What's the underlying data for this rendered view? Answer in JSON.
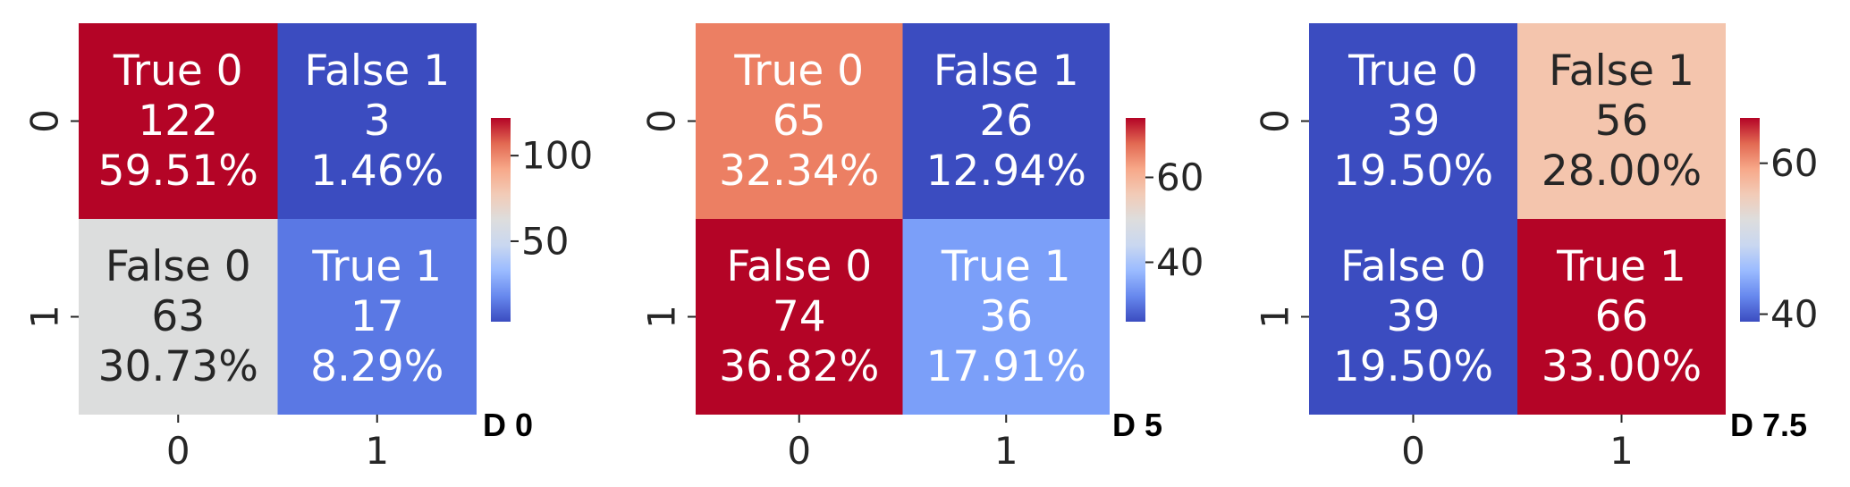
{
  "chart_data": [
    {
      "type": "heatmap",
      "title": "",
      "tag": "D 0",
      "x_ticks": [
        "0",
        "1"
      ],
      "y_ticks": [
        "0",
        "1"
      ],
      "cells": [
        [
          {
            "label": "True 0",
            "value": 122,
            "pct": "59.51%",
            "color": "#b40426",
            "text_color": "#ffffff"
          },
          {
            "label": "False 1",
            "value": 3,
            "pct": "1.46%",
            "color": "#3b4cc0",
            "text_color": "#ffffff"
          }
        ],
        [
          {
            "label": "False 0",
            "value": 63,
            "pct": "30.73%",
            "color": "#dcdddd",
            "text_color": "#262626"
          },
          {
            "label": "True 1",
            "value": 17,
            "pct": "8.29%",
            "color": "#5a78e4",
            "text_color": "#ffffff"
          }
        ]
      ],
      "vmin": 3,
      "vmax": 122,
      "colorbar_ticks": [
        {
          "value": 50,
          "label": "50"
        },
        {
          "value": 100,
          "label": "100"
        }
      ]
    },
    {
      "type": "heatmap",
      "title": "",
      "tag": "D 5",
      "x_ticks": [
        "0",
        "1"
      ],
      "y_ticks": [
        "0",
        "1"
      ],
      "cells": [
        [
          {
            "label": "True 0",
            "value": 65,
            "pct": "32.34%",
            "color": "#ec7f63",
            "text_color": "#ffffff"
          },
          {
            "label": "False 1",
            "value": 26,
            "pct": "12.94%",
            "color": "#3b4cc0",
            "text_color": "#ffffff"
          }
        ],
        [
          {
            "label": "False 0",
            "value": 74,
            "pct": "36.82%",
            "color": "#b40426",
            "text_color": "#ffffff"
          },
          {
            "label": "True 1",
            "value": 36,
            "pct": "17.91%",
            "color": "#7b9ff9",
            "text_color": "#ffffff"
          }
        ]
      ],
      "vmin": 26,
      "vmax": 74,
      "colorbar_ticks": [
        {
          "value": 40,
          "label": "40"
        },
        {
          "value": 60,
          "label": "60"
        }
      ]
    },
    {
      "type": "heatmap",
      "title": "",
      "tag": "D 7.5",
      "x_ticks": [
        "0",
        "1"
      ],
      "y_ticks": [
        "0",
        "1"
      ],
      "cells": [
        [
          {
            "label": "True 0",
            "value": 39,
            "pct": "19.50%",
            "color": "#3b4cc0",
            "text_color": "#ffffff"
          },
          {
            "label": "False 1",
            "value": 56,
            "pct": "28.00%",
            "color": "#f4c5ad",
            "text_color": "#262626"
          }
        ],
        [
          {
            "label": "False 0",
            "value": 39,
            "pct": "19.50%",
            "color": "#3b4cc0",
            "text_color": "#ffffff"
          },
          {
            "label": "True 1",
            "value": 66,
            "pct": "33.00%",
            "color": "#b40426",
            "text_color": "#ffffff"
          }
        ]
      ],
      "vmin": 39,
      "vmax": 66,
      "colorbar_ticks": [
        {
          "value": 40,
          "label": "40"
        },
        {
          "value": 60,
          "label": "60"
        }
      ]
    }
  ],
  "colormap": [
    "#3b4cc0",
    "#6788ee",
    "#9abbff",
    "#c9d7f0",
    "#dddddd",
    "#f2cbb7",
    "#f7a889",
    "#e26952",
    "#b40426"
  ]
}
